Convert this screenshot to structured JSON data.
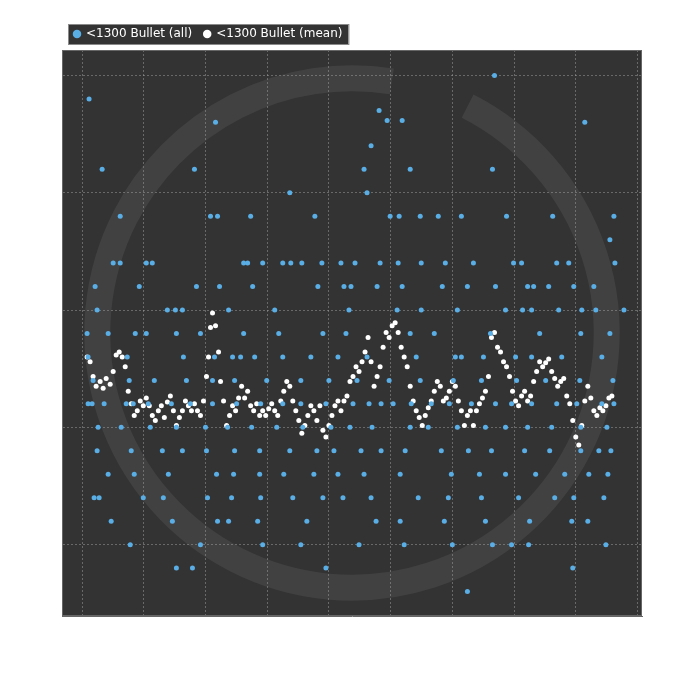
{
  "chart_data": {
    "type": "scatter",
    "series": [
      {
        "name": "<1300 Bullet (all)",
        "color": "#5aaee6",
        "marker": "circle",
        "x": [
          411,
          7,
          296,
          304,
          319,
          133,
          501,
          288,
          20,
          112,
          281,
          327,
          409,
          207,
          284,
          38,
          128,
          135,
          168,
          232,
          307,
          316,
          337,
          355,
          378,
          423,
          469,
          530,
          526,
          31,
          38,
          64,
          70,
          161,
          165,
          180,
          200,
          208,
          219,
          239,
          258,
          272,
          297,
          315,
          338,
          362,
          390,
          430,
          438,
          473,
          485,
          531,
          13,
          57,
          114,
          137,
          170,
          235,
          261,
          268,
          294,
          319,
          359,
          384,
          412,
          444,
          450,
          465,
          490,
          510,
          15,
          85,
          93,
          100,
          146,
          192,
          266,
          314,
          338,
          374,
          422,
          439,
          448,
          475,
          498,
          512,
          540,
          5,
          26,
          53,
          64,
          94,
          118,
          161,
          196,
          240,
          263,
          327,
          351,
          407,
          456,
          497,
          526,
          6,
          45,
          101,
          132,
          150,
          158,
          172,
          200,
          228,
          255,
          284,
          333,
          372,
          378,
          400,
          432,
          448,
          478,
          518,
          11,
          47,
          72,
          104,
          130,
          152,
          184,
          218,
          246,
          274,
          306,
          337,
          370,
          398,
          433,
          462,
          496,
          529,
          6,
          10,
          22,
          44,
          51,
          66,
          89,
          108,
          130,
          154,
          178,
          200,
          218,
          243,
          270,
          286,
          298,
          310,
          328,
          348,
          366,
          388,
          412,
          428,
          448,
          473,
          493,
          518,
          530,
          16,
          39,
          68,
          94,
          123,
          145,
          169,
          194,
          220,
          248,
          267,
          289,
          327,
          345,
          374,
          402,
          422,
          444,
          468,
          497,
          523,
          15,
          49,
          80,
          100,
          124,
          152,
          177,
          207,
          234,
          251,
          278,
          298,
          322,
          358,
          385,
          408,
          441,
          466,
          497,
          515,
          527,
          26,
          52,
          86,
          134,
          151,
          177,
          201,
          231,
          255,
          281,
          317,
          368,
          396,
          422,
          452,
          481,
          505,
          524,
          12,
          17,
          61,
          81,
          125,
          149,
          178,
          210,
          240,
          260,
          288,
          335,
          365,
          398,
          435,
          471,
          490,
          520,
          29,
          90,
          135,
          146,
          175,
          224,
          293,
          317,
          361,
          402,
          446,
          488,
          504,
          48,
          118,
          180,
          218,
          276,
          321,
          369,
          409,
          428,
          445,
          522,
          94,
          110,
          243,
          489,
          384
        ],
        "values": [
          480,
          456,
          444,
          434,
          434,
          432,
          432,
          408,
          384,
          384,
          384,
          384,
          384,
          360,
          360,
          336,
          336,
          336,
          336,
          336,
          336,
          336,
          336,
          336,
          336,
          336,
          336,
          336,
          312,
          288,
          288,
          288,
          288,
          288,
          288,
          288,
          288,
          288,
          288,
          288,
          288,
          288,
          288,
          288,
          288,
          288,
          288,
          288,
          288,
          288,
          288,
          288,
          264,
          264,
          264,
          264,
          264,
          264,
          264,
          264,
          264,
          264,
          264,
          264,
          264,
          264,
          264,
          264,
          264,
          264,
          240,
          240,
          240,
          240,
          240,
          240,
          240,
          240,
          240,
          240,
          240,
          240,
          240,
          240,
          240,
          240,
          240,
          216,
          216,
          216,
          216,
          216,
          216,
          216,
          216,
          216,
          216,
          216,
          216,
          216,
          216,
          216,
          216,
          192,
          192,
          192,
          192,
          192,
          192,
          192,
          192,
          192,
          192,
          192,
          192,
          192,
          192,
          192,
          192,
          192,
          192,
          192,
          168,
          168,
          168,
          168,
          168,
          168,
          168,
          168,
          168,
          168,
          168,
          168,
          168,
          168,
          168,
          168,
          168,
          168,
          144,
          144,
          144,
          144,
          144,
          144,
          144,
          144,
          144,
          144,
          144,
          144,
          144,
          144,
          144,
          144,
          144,
          144,
          144,
          144,
          144,
          144,
          144,
          144,
          144,
          144,
          144,
          144,
          144,
          120,
          120,
          120,
          120,
          120,
          120,
          120,
          120,
          120,
          120,
          120,
          120,
          120,
          120,
          120,
          120,
          120,
          120,
          120,
          120,
          120,
          96,
          96,
          96,
          96,
          96,
          96,
          96,
          96,
          96,
          96,
          96,
          96,
          96,
          96,
          96,
          96,
          96,
          96,
          96,
          96,
          96,
          72,
          72,
          72,
          72,
          72,
          72,
          72,
          72,
          72,
          72,
          72,
          72,
          72,
          72,
          72,
          72,
          72,
          72,
          48,
          48,
          48,
          48,
          48,
          48,
          48,
          48,
          48,
          48,
          48,
          48,
          48,
          48,
          48,
          48,
          48,
          48,
          24,
          24,
          24,
          24,
          24,
          24,
          24,
          24,
          24,
          24,
          24,
          24,
          24,
          0,
          0,
          0,
          0,
          0,
          0,
          0,
          0,
          0,
          0,
          0,
          -24,
          -24,
          -24,
          -24,
          -48
        ]
      },
      {
        "name": "<1300 Bullet (mean)",
        "color": "#ffffff",
        "marker": "circle",
        "x": [
          5,
          8,
          11,
          14,
          18,
          21,
          24,
          28,
          31,
          34,
          37,
          40,
          43,
          46,
          49,
          52,
          55,
          58,
          61,
          64,
          67,
          70,
          73,
          76,
          79,
          82,
          85,
          88,
          91,
          94,
          97,
          100,
          103,
          106,
          109,
          112,
          115,
          118,
          121,
          124,
          126,
          128,
          130,
          133,
          136,
          138,
          141,
          144,
          147,
          150,
          153,
          156,
          159,
          162,
          165,
          168,
          171,
          174,
          177,
          180,
          183,
          186,
          189,
          192,
          195,
          198,
          201,
          204,
          207,
          210,
          213,
          216,
          219,
          222,
          225,
          228,
          231,
          234,
          237,
          240,
          243,
          246,
          249,
          252,
          255,
          258,
          261,
          264,
          267,
          270,
          273,
          276,
          279,
          282,
          285,
          288,
          291,
          294,
          297,
          300,
          303,
          306,
          309,
          312,
          315,
          318,
          321,
          324,
          327,
          330,
          333,
          336,
          339,
          342,
          345,
          348,
          351,
          354,
          357,
          360,
          363,
          366,
          369,
          372,
          375,
          378,
          381,
          384,
          387,
          390,
          393,
          396,
          399,
          402,
          405,
          408,
          411,
          414,
          417,
          420,
          423,
          426,
          429,
          432,
          435,
          438,
          441,
          444,
          447,
          450,
          453,
          456,
          459,
          462,
          465,
          468,
          471,
          474,
          477,
          480,
          483,
          486,
          489,
          492,
          495,
          498,
          501,
          504,
          507,
          510,
          513,
          516,
          519,
          522,
          525,
          528
        ],
        "values": [
          192,
          187,
          172,
          162,
          167,
          160,
          170,
          164,
          177,
          194,
          197,
          192,
          182,
          157,
          144,
          132,
          137,
          147,
          142,
          150,
          142,
          132,
          127,
          137,
          142,
          130,
          146,
          152,
          137,
          122,
          130,
          137,
          147,
          142,
          137,
          144,
          137,
          132,
          147,
          172,
          192,
          222,
          237,
          224,
          197,
          167,
          147,
          122,
          132,
          142,
          137,
          150,
          162,
          150,
          157,
          142,
          137,
          144,
          132,
          137,
          132,
          139,
          144,
          137,
          132,
          147,
          157,
          167,
          162,
          147,
          137,
          127,
          114,
          122,
          132,
          142,
          137,
          127,
          142,
          117,
          110,
          122,
          132,
          142,
          147,
          137,
          147,
          152,
          167,
          172,
          182,
          177,
          187,
          197,
          212,
          187,
          162,
          172,
          182,
          202,
          217,
          212,
          224,
          227,
          217,
          202,
          192,
          182,
          162,
          147,
          137,
          130,
          122,
          132,
          140,
          147,
          157,
          167,
          162,
          147,
          150,
          157,
          167,
          162,
          147,
          137,
          122,
          132,
          137,
          122,
          137,
          144,
          150,
          157,
          172,
          212,
          217,
          202,
          197,
          187,
          182,
          172,
          157,
          147,
          142,
          152,
          157,
          147,
          152,
          167,
          177,
          187,
          182,
          186,
          190,
          177,
          170,
          162,
          167,
          170,
          152,
          144,
          127,
          110,
          102,
          122,
          147,
          162,
          150,
          137,
          132,
          140,
          137,
          142,
          150,
          152
        ]
      }
    ],
    "xlim": [
      -20,
      558
    ],
    "ylim": [
      -73,
      506
    ],
    "xticks": [
      0,
      61.5,
      123,
      184.5,
      246,
      307.5,
      369,
      430.5,
      492,
      553.5
    ],
    "yticks": [
      0,
      120,
      240,
      360,
      480
    ],
    "grid": true,
    "legend": "upper left",
    "tick_labels": false
  }
}
